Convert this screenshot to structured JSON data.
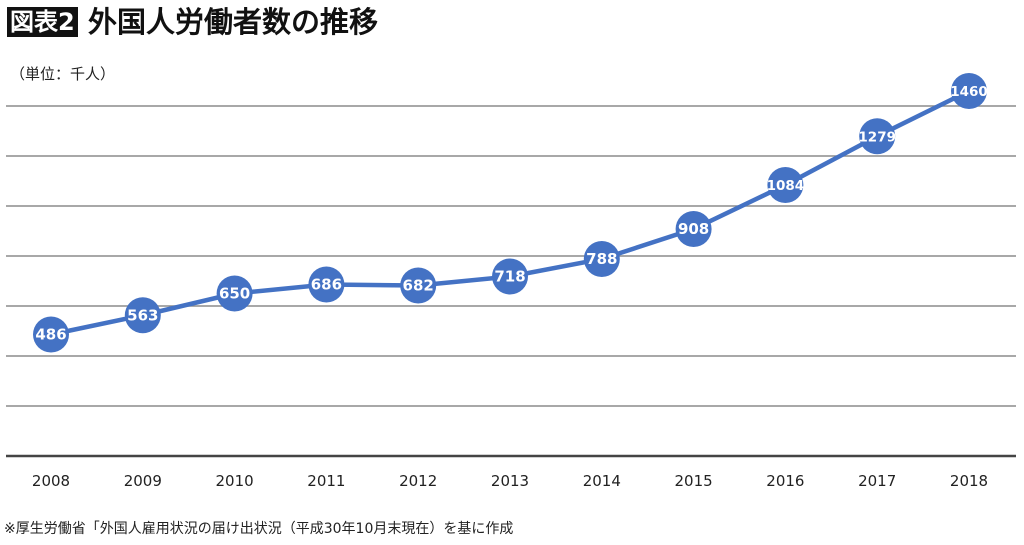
{
  "header": {
    "badge": "図表2",
    "title": "外国人労働者数の推移",
    "unit": "（単位：千人）"
  },
  "footer": {
    "source": "※厚生労働省「外国人雇用状況の届け出状況（平成30年10月末現在）を基に作成"
  },
  "colors": {
    "series": "#4472C4",
    "grid": "#8c8c8c",
    "axis": "#444444"
  },
  "chart_data": {
    "type": "line",
    "title": "外国人労働者数の推移",
    "ylabel": "（単位：千人）",
    "xlabel": "",
    "categories": [
      "2008",
      "2009",
      "2010",
      "2011",
      "2012",
      "2013",
      "2014",
      "2015",
      "2016",
      "2017",
      "2018"
    ],
    "series": [
      {
        "name": "外国人労働者数",
        "values": [
          486,
          563,
          650,
          686,
          682,
          718,
          788,
          908,
          1084,
          1279,
          1460
        ]
      }
    ],
    "ylim": [
      0,
      1400
    ],
    "ygrid_step": 200,
    "grid": true,
    "data_labels": true,
    "legend": "none"
  }
}
